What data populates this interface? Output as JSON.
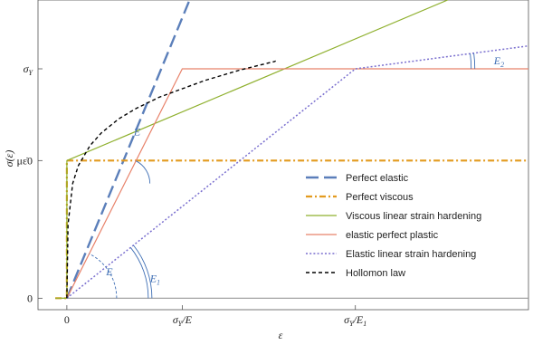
{
  "chart_data": {
    "type": "line",
    "title": "",
    "xlabel": "ε",
    "ylabel": "σ(ε)",
    "x_ticks": [
      {
        "x": 0,
        "label": "0"
      },
      {
        "x": 1,
        "label": "σY/E"
      },
      {
        "x": 2.5,
        "label": "σY/E1"
      }
    ],
    "y_ticks": [
      {
        "y": 0,
        "label": "0"
      },
      {
        "y": 0.6,
        "label": "με̇0"
      },
      {
        "y": 1,
        "label": "σY"
      }
    ],
    "xlim": [
      -0.25,
      4.0
    ],
    "ylim": [
      -0.05,
      1.3
    ],
    "grid": false,
    "legend_position": "lower-right",
    "series": [
      {
        "name": "Perfect elastic",
        "color": "#5b7fba",
        "dash": "long",
        "x": [
          0,
          1.08
        ],
        "y": [
          0,
          1.32
        ]
      },
      {
        "name": "Perfect viscous",
        "color": "#e39b1f",
        "dash": "dashdot",
        "x": [
          -0.1,
          0,
          0,
          4.0
        ],
        "y": [
          0,
          0,
          0.6,
          0.6
        ]
      },
      {
        "name": "Viscous linear strain hardening",
        "color": "#8fb02e",
        "dash": "solid",
        "x": [
          -0.1,
          0,
          0,
          3.3
        ],
        "y": [
          0,
          0,
          0.6,
          1.3
        ]
      },
      {
        "name": "elastic perfect plastic",
        "color": "#e8826a",
        "dash": "solid",
        "x": [
          0,
          1,
          4.0
        ],
        "y": [
          0,
          1,
          1
        ]
      },
      {
        "name": "Elastic linear strain hardening",
        "color": "#7a6fcf",
        "dash": "dotted",
        "x": [
          0,
          2.5,
          4.0
        ],
        "y": [
          0,
          1,
          1.1
        ]
      },
      {
        "name": "Hollomon law",
        "color": "#000000",
        "dash": "short",
        "x": [
          0,
          0.01,
          0.05,
          0.1,
          0.2,
          0.3,
          0.45,
          0.6,
          0.8,
          1.0,
          1.2,
          1.5,
          1.8,
          1.81
        ],
        "y": [
          0,
          0.322,
          0.5,
          0.578,
          0.665,
          0.721,
          0.782,
          0.827,
          0.876,
          0.913,
          0.95,
          0.995,
          1.032,
          1.034
        ]
      },
      {
        "name": "",
        "color": "#9a9a9a",
        "dash": "solid",
        "x": [
          -0.1,
          4.0
        ],
        "y": [
          0,
          0
        ]
      }
    ],
    "annotations": [
      {
        "text": "E",
        "color": "#3f6fb5",
        "x": 0.34,
        "y": 0.1
      },
      {
        "text": "E1",
        "color": "#3f6fb5",
        "x": 0.72,
        "y": 0.07
      },
      {
        "text": "E",
        "color": "#3f6fb5",
        "x": 0.58,
        "y": 0.71
      },
      {
        "text": "E2",
        "color": "#3f6fb5",
        "x": 3.7,
        "y": 1.02
      }
    ]
  }
}
